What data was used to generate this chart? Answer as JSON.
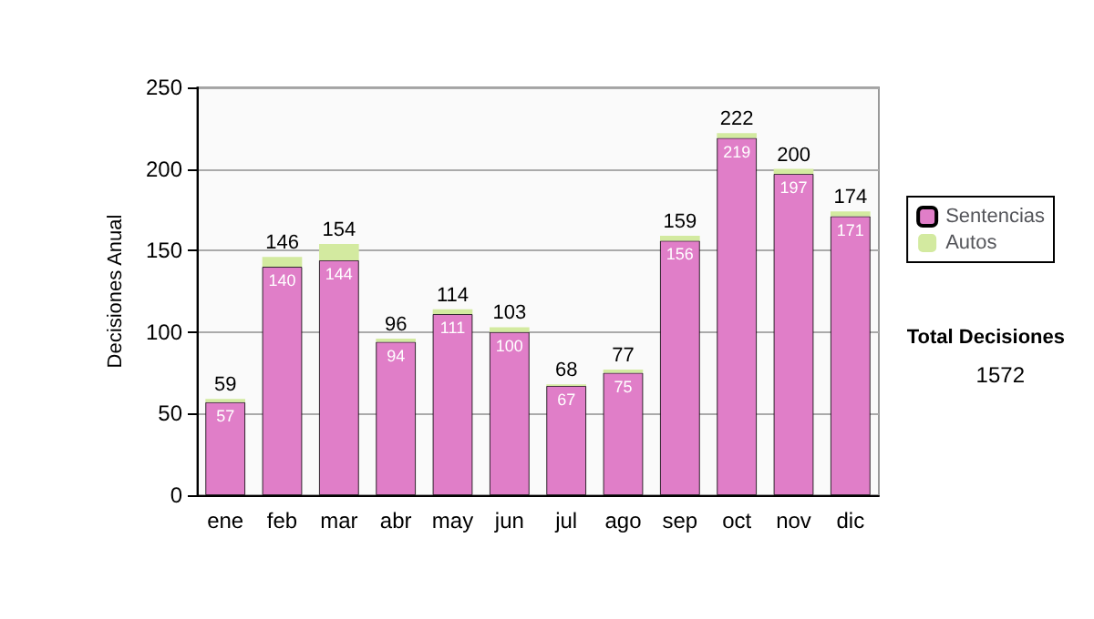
{
  "chart_data": {
    "type": "bar",
    "ylabel": "Decisiones Anual",
    "categories": [
      "ene",
      "feb",
      "mar",
      "abr",
      "may",
      "jun",
      "jul",
      "ago",
      "sep",
      "oct",
      "nov",
      "dic"
    ],
    "series": [
      {
        "name": "Sentencias",
        "color": "#e07ec8",
        "values": [
          57,
          140,
          144,
          94,
          111,
          100,
          67,
          75,
          156,
          219,
          197,
          171
        ],
        "value_labels": [
          "57",
          "140",
          "144",
          "94",
          "111",
          "100",
          "67",
          "75",
          "156",
          "219",
          "197",
          "171"
        ]
      },
      {
        "name": "Autos",
        "color": "#d3eaa0",
        "values": [
          2,
          6,
          10,
          2,
          3,
          3,
          1,
          2,
          3,
          3,
          3,
          3
        ]
      }
    ],
    "stacked": true,
    "totals": [
      "59",
      "146",
      "154",
      "96",
      "114",
      "103",
      "68",
      "77",
      "159",
      "222",
      "200",
      "174"
    ],
    "ylim": [
      0,
      250
    ],
    "yticks": [
      0,
      50,
      100,
      150,
      200,
      250
    ],
    "grid": "y",
    "legend": "right",
    "annotations": [
      "Total Decisiones",
      "1572"
    ]
  }
}
